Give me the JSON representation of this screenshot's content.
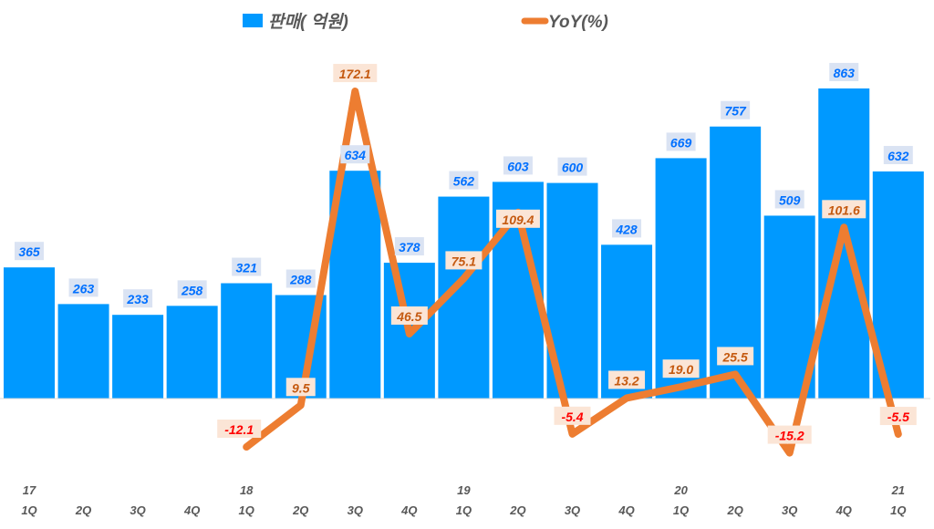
{
  "chart_data": {
    "type": "bar+line",
    "categories": [
      "17 1Q",
      "2Q",
      "3Q",
      "4Q",
      "18 1Q",
      "2Q",
      "3Q",
      "4Q",
      "19 1Q",
      "2Q",
      "3Q",
      "4Q",
      "20 1Q",
      "2Q",
      "3Q",
      "4Q",
      "21 1Q"
    ],
    "x_tick_years": [
      "17",
      "",
      "",
      "",
      "18",
      "",
      "",
      "",
      "19",
      "",
      "",
      "",
      "20",
      "",
      "",
      "",
      "21"
    ],
    "x_tick_quarters": [
      "1Q",
      "2Q",
      "3Q",
      "4Q",
      "1Q",
      "2Q",
      "3Q",
      "4Q",
      "1Q",
      "2Q",
      "3Q",
      "4Q",
      "1Q",
      "2Q",
      "3Q",
      "4Q",
      "1Q"
    ],
    "series": [
      {
        "name": "판매( 억원)",
        "type": "bar",
        "color": "#0099ff",
        "values": [
          365,
          263,
          233,
          258,
          321,
          288,
          634,
          378,
          562,
          603,
          600,
          428,
          669,
          757,
          509,
          863,
          632
        ]
      },
      {
        "name": "YoY(%)",
        "type": "line",
        "color": "#ed7d31",
        "values": [
          null,
          null,
          null,
          null,
          -12.1,
          9.5,
          172.1,
          46.5,
          75.1,
          109.4,
          -5.4,
          13.2,
          19.0,
          25.5,
          -15.2,
          101.6,
          -5.5
        ]
      }
    ],
    "legend": "top",
    "grid": false,
    "colors": {
      "bar_label": "#0070ff",
      "bar_label_bg": "#dae3f3",
      "line_label_pos": "#c55a11",
      "line_label_neg": "#ff0000",
      "line_label_bg": "#fbe5d6",
      "axis_text": "#595959"
    }
  }
}
